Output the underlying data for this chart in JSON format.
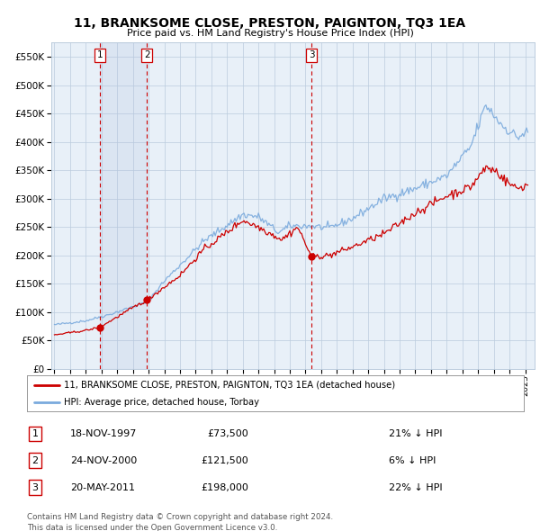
{
  "title": "11, BRANKSOME CLOSE, PRESTON, PAIGNTON, TQ3 1EA",
  "subtitle": "Price paid vs. HM Land Registry's House Price Index (HPI)",
  "legend_line1": "11, BRANKSOME CLOSE, PRESTON, PAIGNTON, TQ3 1EA (detached house)",
  "legend_line2": "HPI: Average price, detached house, Torbay",
  "table_rows": [
    {
      "num": "1",
      "date": "18-NOV-1997",
      "price": "£73,500",
      "hpi": "21% ↓ HPI"
    },
    {
      "num": "2",
      "date": "24-NOV-2000",
      "price": "£121,500",
      "hpi": "6% ↓ HPI"
    },
    {
      "num": "3",
      "date": "20-MAY-2011",
      "price": "£198,000",
      "hpi": "22% ↓ HPI"
    }
  ],
  "footer": "Contains HM Land Registry data © Crown copyright and database right 2024.\nThis data is licensed under the Open Government Licence v3.0.",
  "hpi_color": "#7aaadd",
  "price_color": "#cc0000",
  "vline_color": "#cc0000",
  "plot_bg": "#e8f0f8",
  "grid_color": "#bbccdd",
  "sale_t": [
    1997.88,
    2000.9,
    2011.38
  ],
  "sale_prices": [
    73500,
    121500,
    198000
  ],
  "sale_labels": [
    "1",
    "2",
    "3"
  ],
  "ylim": [
    0,
    575000
  ],
  "yticks": [
    0,
    50000,
    100000,
    150000,
    200000,
    250000,
    300000,
    350000,
    400000,
    450000,
    500000,
    550000
  ],
  "xstart": 1994.8,
  "xend": 2025.6,
  "hpi_anchors_t": [
    1995.0,
    1997.0,
    1998.5,
    2000.9,
    2002.0,
    2004.5,
    2007.0,
    2008.0,
    2009.3,
    2010.0,
    2011.4,
    2012.5,
    2014.0,
    2016.0,
    2018.0,
    2020.0,
    2021.5,
    2022.5,
    2023.5,
    2024.5,
    2025.2
  ],
  "hpi_anchors_v": [
    78000,
    85000,
    96000,
    118000,
    155000,
    225000,
    272000,
    268000,
    240000,
    252000,
    252000,
    248000,
    265000,
    300000,
    318000,
    340000,
    390000,
    465000,
    430000,
    408000,
    418000
  ],
  "price_anchors_t": [
    1995.0,
    1997.0,
    1997.88,
    2000.0,
    2000.9,
    2003.0,
    2004.5,
    2007.0,
    2008.0,
    2009.5,
    2010.5,
    2011.38,
    2012.5,
    2014.0,
    2016.0,
    2018.0,
    2020.0,
    2021.5,
    2022.5,
    2023.2,
    2023.8,
    2024.5,
    2025.2
  ],
  "price_anchors_v": [
    60000,
    68000,
    73500,
    108000,
    121500,
    165000,
    210000,
    262000,
    250000,
    228000,
    250000,
    198000,
    200000,
    215000,
    238000,
    275000,
    305000,
    320000,
    355000,
    348000,
    330000,
    318000,
    325000
  ]
}
